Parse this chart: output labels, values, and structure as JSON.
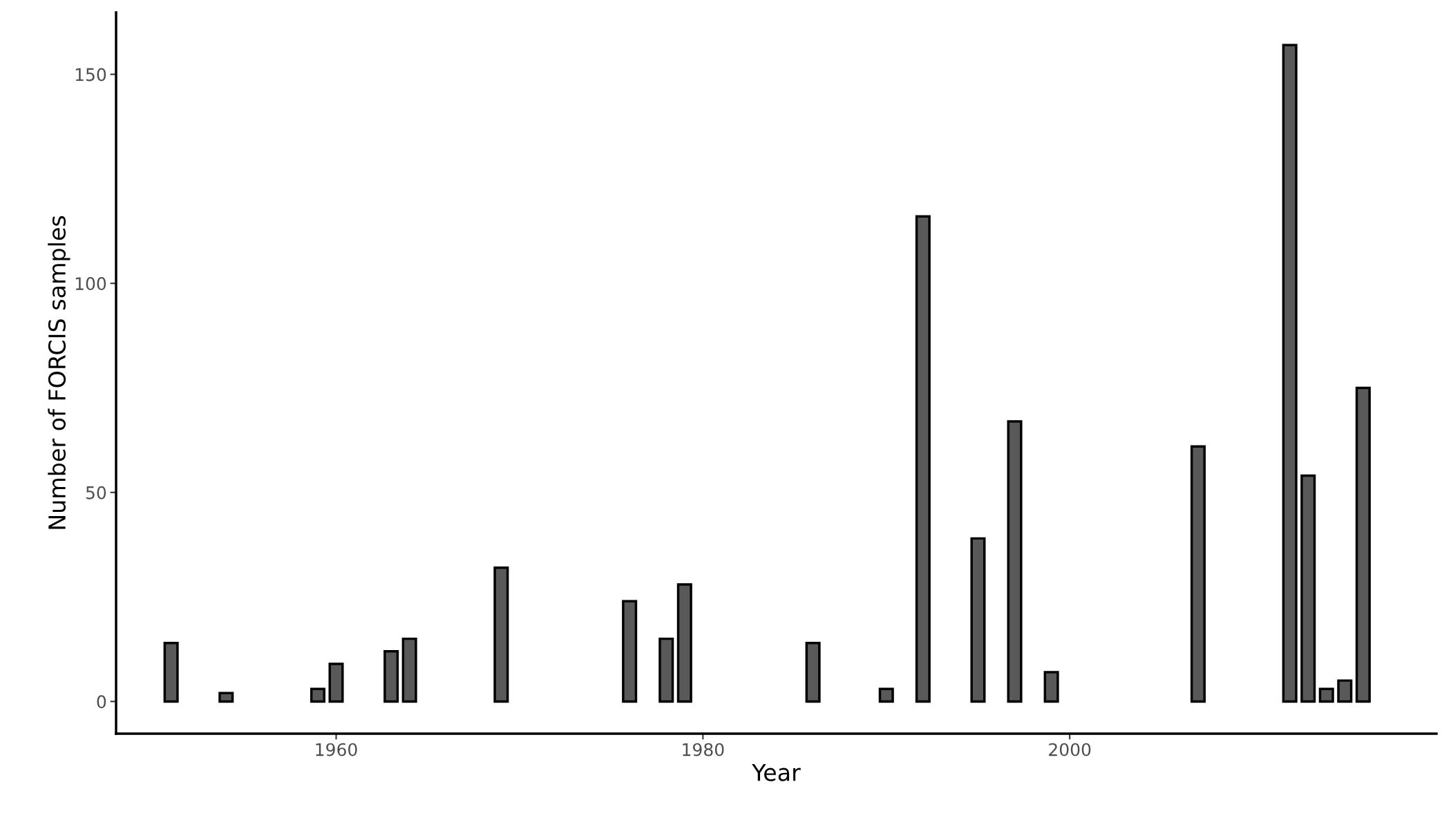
{
  "chart_data": {
    "type": "bar",
    "xlabel": "Year",
    "ylabel": "Number of FORCIS samples",
    "x": [
      1951,
      1954,
      1959,
      1960,
      1963,
      1964,
      1969,
      1976,
      1978,
      1979,
      1986,
      1990,
      1992,
      1995,
      1997,
      1999,
      2007,
      2012,
      2013,
      2014,
      2015,
      2016
    ],
    "values": [
      14,
      2,
      3,
      9,
      12,
      15,
      32,
      24,
      15,
      28,
      14,
      3,
      116,
      39,
      67,
      7,
      61,
      157,
      54,
      3,
      5,
      75
    ],
    "color": "#595959",
    "xlim": [
      1948,
      2020
    ],
    "xticks": [
      1960,
      1980,
      2000
    ],
    "ylim": [
      -7.7,
      164.8
    ],
    "yticks": [
      0,
      50,
      100,
      150
    ],
    "grid": false,
    "legend": false
  }
}
